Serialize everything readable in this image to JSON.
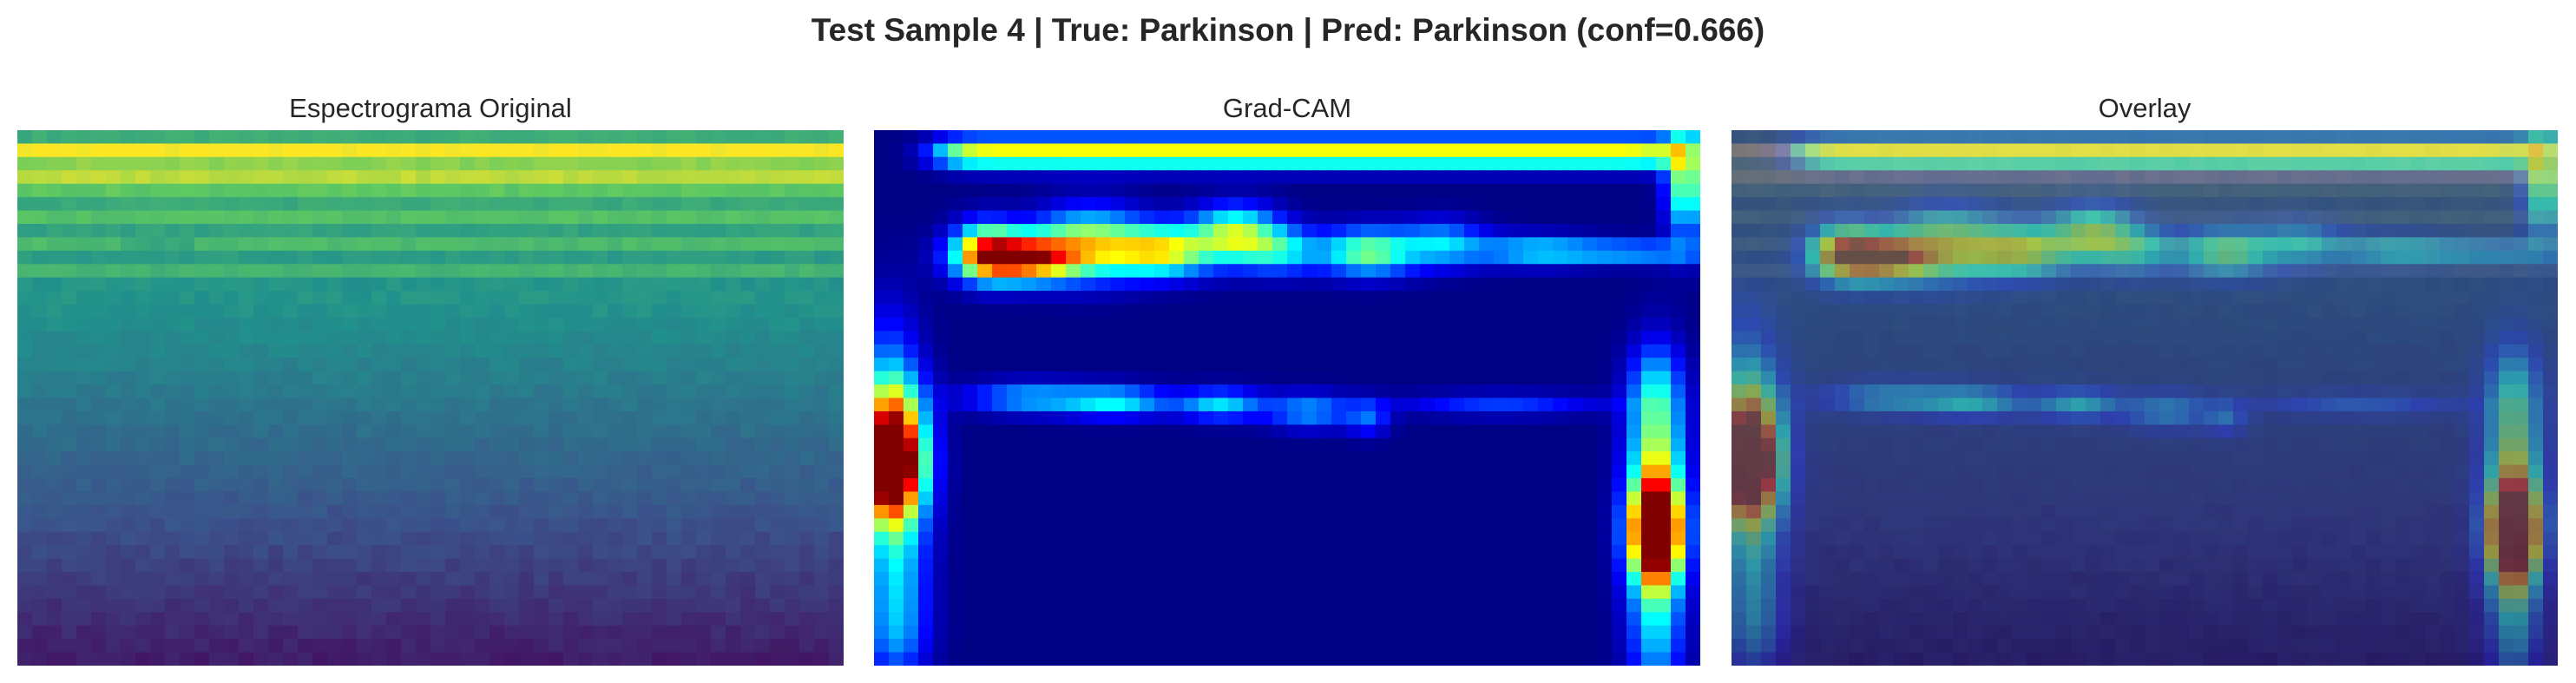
{
  "figure": {
    "title": "Test Sample 4 | True: Parkinson | Pred: Parkinson (conf=0.666)"
  },
  "panels": [
    {
      "title": "Espectrograma Original",
      "colormap": "viridis"
    },
    {
      "title": "Grad-CAM",
      "colormap": "jet"
    },
    {
      "title": "Overlay",
      "colormap": "jet-over-viridis"
    }
  ],
  "colors": {
    "background": "#ffffff",
    "text": "#262626"
  }
}
